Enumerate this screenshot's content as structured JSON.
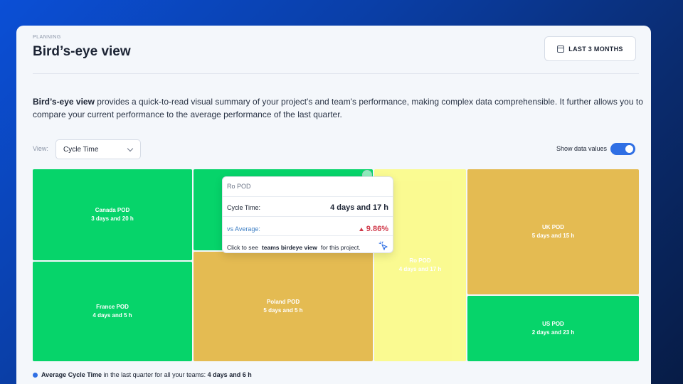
{
  "header": {
    "breadcrumb": "PLANNING",
    "title": "Bird’s-eye view",
    "range_button": "LAST 3 MONTHS"
  },
  "description": {
    "bold": "Bird’s-eye view",
    "text": " provides a quick-to-read visual summary of your project's and team's performance, making complex data comprehensible. It further allows you to compare your current performance to the average performance of the last quarter."
  },
  "controls": {
    "view_label": "View:",
    "view_value": "Cycle Time",
    "toggle_label": "Show data values",
    "toggle_on": true
  },
  "colors": {
    "green": "#06d46a",
    "gold": "#e4bb52",
    "yellow": "#fbfb86",
    "accent": "#2f6fe4"
  },
  "tiles": [
    {
      "name": "Canada POD",
      "value": "3 days and 20 h",
      "color": "green"
    },
    {
      "name": "France POD",
      "value": "4 days and 5 h",
      "color": "green"
    },
    {
      "name": "",
      "value": "",
      "color": "green"
    },
    {
      "name": "Poland POD",
      "value": "5 days and 5 h",
      "color": "gold"
    },
    {
      "name": "Ro POD",
      "value": "4 days and 17 h",
      "color": "yellow"
    },
    {
      "name": "UK POD",
      "value": "5 days and 15 h",
      "color": "gold"
    },
    {
      "name": "US POD",
      "value": "2 days and 23 h",
      "color": "green"
    }
  ],
  "tooltip": {
    "title": "Ro POD",
    "metric_label": "Cycle Time:",
    "metric_value": "4 days and 17 h",
    "avg_label": "vs Average:",
    "avg_value": "9.86%",
    "click_prefix": "Click to see",
    "click_link": "teams birdeye view",
    "click_suffix": "for this project."
  },
  "legend": {
    "bold": "Average Cycle Time",
    "text": "in the last quarter for all your teams:",
    "value": "4 days and 6 h"
  }
}
